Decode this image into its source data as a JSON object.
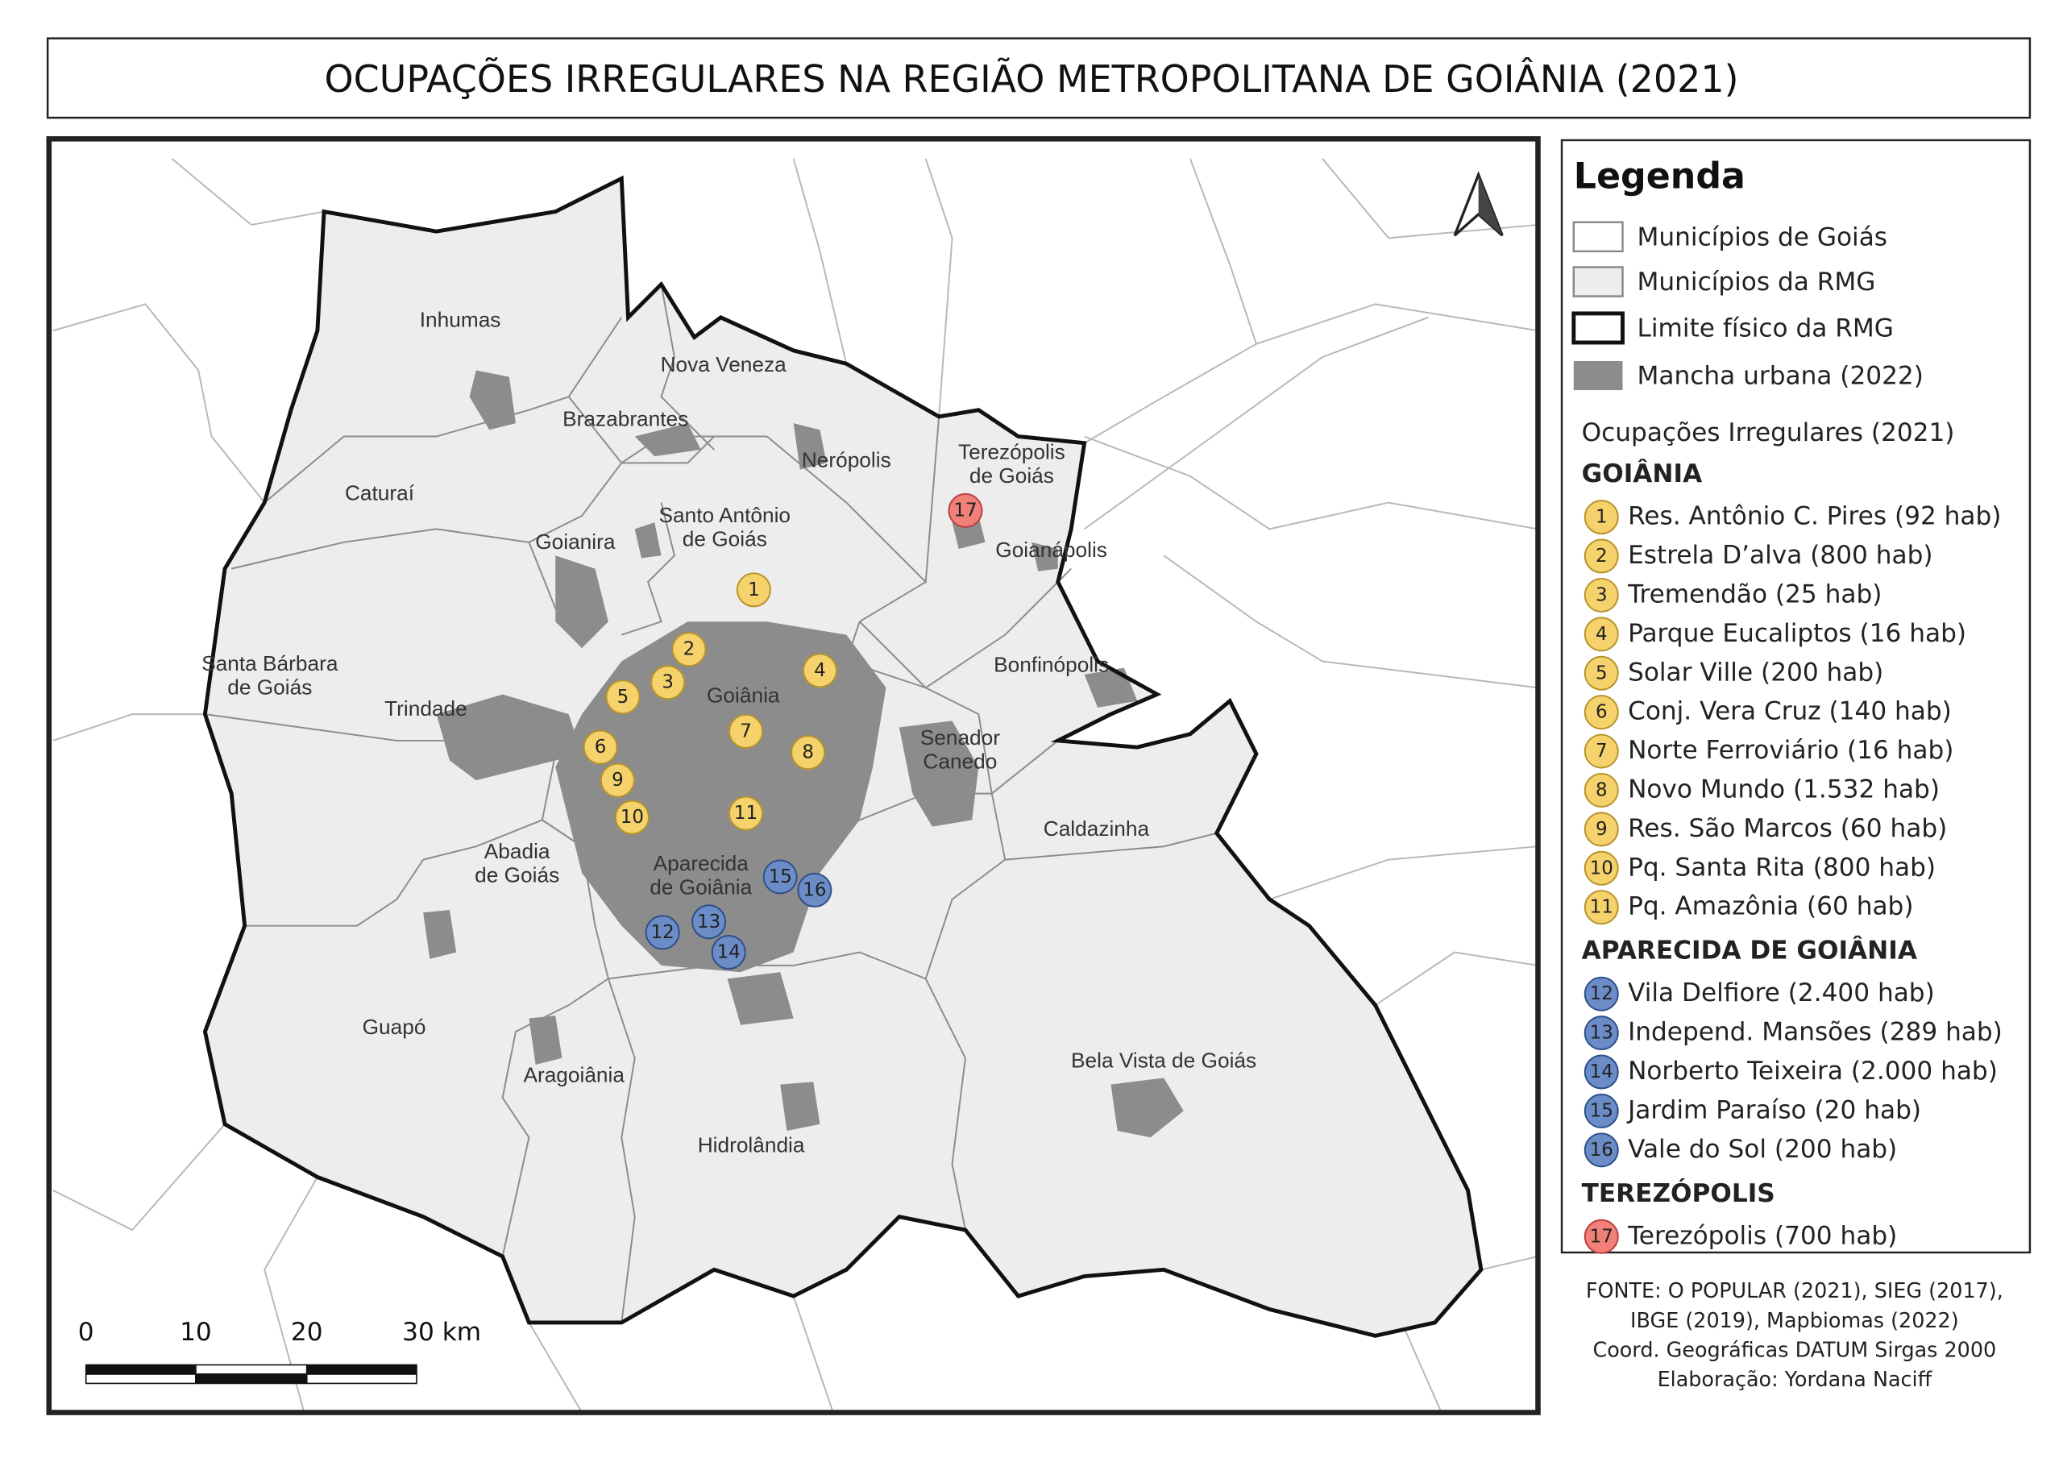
{
  "title": "OCUPAÇÕES IRREGULARES NA REGIÃO METROPOLITANA DE GOIÂNIA (2021)",
  "municipalities": [
    [
      "Inhumas"
    ],
    [
      "Nova Veneza"
    ],
    [
      "Brazabrantes"
    ],
    [
      "Nerópolis"
    ],
    [
      "Terezópolis",
      "de Goiás"
    ],
    [
      "Caturaí"
    ],
    [
      "Santo Antônio",
      "de Goiás"
    ],
    [
      "Goianira"
    ],
    [
      "Goianápolis"
    ],
    [
      "Santa Bárbara",
      "de Goiás"
    ],
    [
      "Bonfinópolis"
    ],
    [
      "Trindade"
    ],
    [
      "Goiânia"
    ],
    [
      "Senador",
      "Canedo"
    ],
    [
      "Caldazinha"
    ],
    [
      "Abadia",
      "de Goiás"
    ],
    [
      "Aparecida",
      "de Goiânia"
    ],
    [
      "Guapó"
    ],
    [
      "Bela Vista de Goiás"
    ],
    [
      "Aragoiânia"
    ],
    [
      "Hidrolândia"
    ]
  ],
  "legend": {
    "title": "Legenda",
    "items": [
      "Municípios de Goiás",
      "Municípios da RMG",
      "Limite físico da RMG",
      "Mancha urbana (2022)"
    ],
    "occupations_title": "Ocupações Irregulares (2021)",
    "groups": [
      {
        "name": "GOIÂNIA",
        "color": "#f5d26b",
        "points": [
          {
            "number": "1",
            "label": "Res. Antônio C. Pires (92 hab)"
          },
          {
            "number": "2",
            "label": "Estrela D’alva (800 hab)"
          },
          {
            "number": "3",
            "label": "Tremendão (25 hab)"
          },
          {
            "number": "4",
            "label": "Parque Eucaliptos (16 hab)"
          },
          {
            "number": "5",
            "label": "Solar Ville (200 hab)"
          },
          {
            "number": "6",
            "label": "Conj. Vera Cruz (140 hab)"
          },
          {
            "number": "7",
            "label": "Norte Ferroviário (16 hab)"
          },
          {
            "number": "8",
            "label": "Novo Mundo (1.532 hab)"
          },
          {
            "number": "9",
            "label": "Res. São Marcos (60 hab)"
          },
          {
            "number": "10",
            "label": "Pq. Santa Rita (800 hab)"
          },
          {
            "number": "11",
            "label": "Pq. Amazônia (60 hab)"
          }
        ]
      },
      {
        "name": "APARECIDA DE GOIÂNIA",
        "color": "#6b8cc6",
        "points": [
          {
            "number": "12",
            "label": "Vila Delfiore (2.400 hab)"
          },
          {
            "number": "13",
            "label": "Independ. Mansões (289 hab)"
          },
          {
            "number": "14",
            "label": "Norberto Teixeira (2.000 hab)"
          },
          {
            "number": "15",
            "label": "Jardim Paraíso (20 hab)"
          },
          {
            "number": "16",
            "label": "Vale do Sol (200 hab)"
          }
        ]
      },
      {
        "name": "TEREZÓPOLIS",
        "color": "#f08078",
        "points": [
          {
            "number": "17",
            "label": "Terezópolis (700 hab)"
          }
        ]
      }
    ]
  },
  "scale": {
    "labels": [
      "0",
      "10",
      "20",
      "30 km"
    ]
  },
  "footer": [
    "FONTE: O POPULAR (2021), SIEG (2017),",
    "IBGE (2019), Mapbiomas (2022)",
    "Coord. Geográficas DATUM Sirgas 2000",
    "Elaboração: Yordana Naciff"
  ]
}
